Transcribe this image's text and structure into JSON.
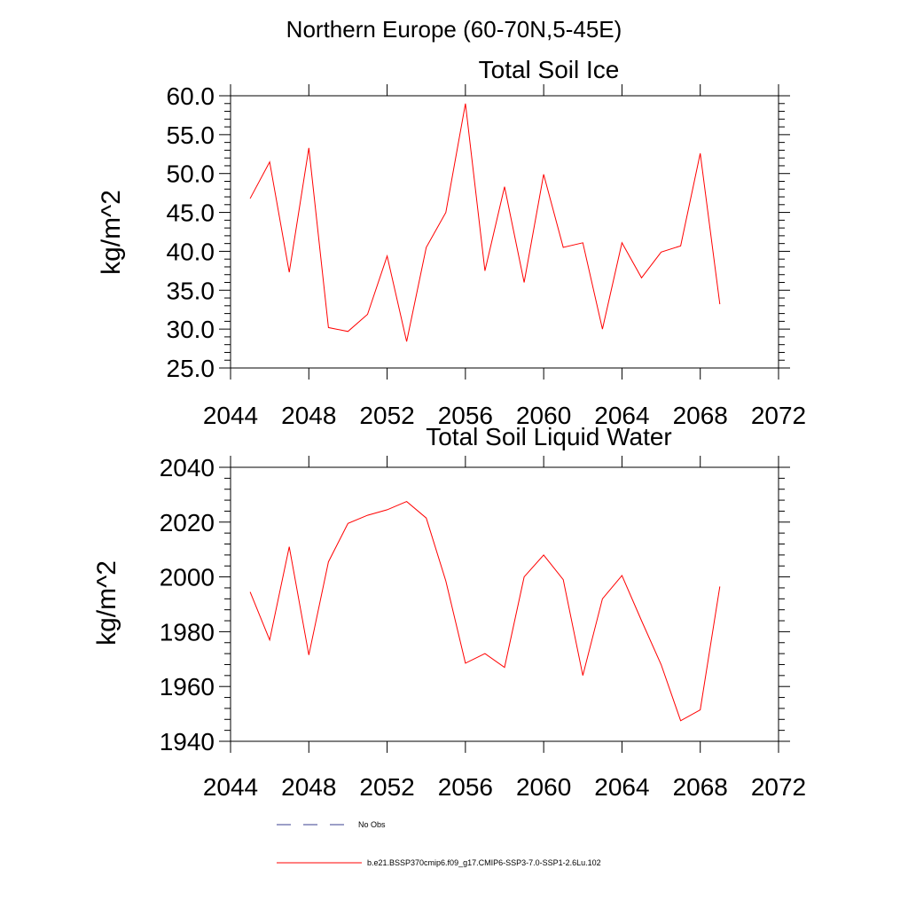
{
  "figure_title": "Northern Europe (60-70N,5-45E)",
  "chart_data": [
    {
      "type": "line",
      "title": "Total Soil Ice",
      "xlabel": "",
      "ylabel": "kg/m^2",
      "xlim": [
        2044,
        2072
      ],
      "ylim": [
        25,
        60
      ],
      "x_ticks": [
        2044,
        2048,
        2052,
        2056,
        2060,
        2064,
        2068,
        2072
      ],
      "y_ticks": [
        25,
        30,
        35,
        40,
        45,
        50,
        55,
        60
      ],
      "y_tick_labels": [
        "25.0",
        "30.0",
        "35.0",
        "40.0",
        "45.0",
        "50.0",
        "55.0",
        "60.0"
      ],
      "series": [
        {
          "name": "b.e21.BSSP370cmip6.f09_g17.CMIP6-SSP3-7.0-SSP1-2.6Lu.102",
          "color": "#ff0000",
          "x": [
            2045,
            2046,
            2047,
            2048,
            2049,
            2050,
            2051,
            2052,
            2053,
            2054,
            2055,
            2056,
            2057,
            2058,
            2059,
            2060,
            2061,
            2062,
            2063,
            2064,
            2065,
            2066,
            2067,
            2068,
            2069
          ],
          "values": [
            46.8,
            51.5,
            37.3,
            53.3,
            30.2,
            29.7,
            31.9,
            39.4,
            28.4,
            40.5,
            45.0,
            59.0,
            37.5,
            48.3,
            36.0,
            49.9,
            40.5,
            41.1,
            30.0,
            41.1,
            36.6,
            39.9,
            40.7,
            52.6,
            33.2
          ]
        }
      ]
    },
    {
      "type": "line",
      "title": "Total Soil Liquid Water",
      "xlabel": "",
      "ylabel": "kg/m^2",
      "xlim": [
        2044,
        2072
      ],
      "ylim": [
        1940,
        2045
      ],
      "x_ticks": [
        2044,
        2048,
        2052,
        2056,
        2060,
        2064,
        2068,
        2072
      ],
      "y_ticks": [
        1940,
        1960,
        1980,
        2000,
        2020,
        2040
      ],
      "y_tick_labels": [
        "1940",
        "1960",
        "1980",
        "2000",
        "2020",
        "2040"
      ],
      "series": [
        {
          "name": "b.e21.BSSP370cmip6.f09_g17.CMIP6-SSP3-7.0-SSP1-2.6Lu.102",
          "color": "#ff0000",
          "x": [
            2045,
            2046,
            2047,
            2048,
            2049,
            2050,
            2051,
            2052,
            2053,
            2054,
            2055,
            2056,
            2057,
            2058,
            2059,
            2060,
            2061,
            2062,
            2063,
            2064,
            2065,
            2066,
            2067,
            2068,
            2069
          ],
          "values": [
            1994.5,
            1977.0,
            2011.0,
            1971.5,
            2005.5,
            2019.5,
            2022.5,
            2024.5,
            2027.5,
            2021.5,
            1998.5,
            1968.5,
            1972.0,
            1967.0,
            2000.0,
            2008.0,
            1999.0,
            1964.0,
            1992.0,
            2000.5,
            1984.0,
            1968.0,
            1947.5,
            1951.5,
            1996.5
          ]
        }
      ]
    }
  ],
  "legend": {
    "placement": "bottom",
    "items": [
      {
        "label": "No Obs",
        "style": "dashed",
        "color": "#3a3f8f"
      },
      {
        "label": "b.e21.BSSP370cmip6.f09_g17.CMIP6-SSP3-7.0-SSP1-2.6Lu.102",
        "style": "solid",
        "color": "#ff0000"
      }
    ]
  }
}
